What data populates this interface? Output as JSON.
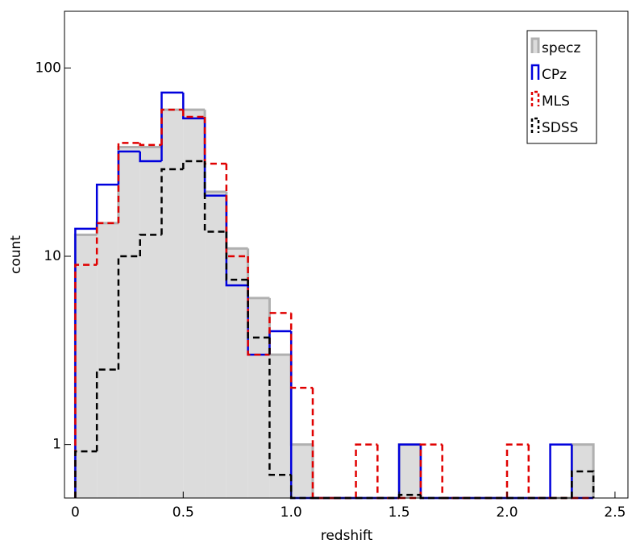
{
  "chart_data": {
    "type": "histogram",
    "xlabel": "redshift",
    "ylabel": "count",
    "bins": [
      0,
      0.1,
      0.2,
      0.3,
      0.4,
      0.5,
      0.6,
      0.7,
      0.8,
      0.9,
      1.0,
      1.1,
      1.2,
      1.3,
      1.4,
      1.5,
      1.6,
      1.7,
      1.8,
      1.9,
      2.0,
      2.1,
      2.2,
      2.3,
      2.4
    ],
    "series": [
      {
        "name": "specz",
        "color": "#b0b0b0",
        "fill": "#dcdcdc",
        "style": "filled",
        "values": [
          13,
          15,
          38,
          38,
          60,
          60,
          22,
          11,
          6,
          3,
          1,
          0,
          0,
          0,
          0,
          1,
          0,
          0,
          0,
          0,
          0,
          0,
          0,
          1
        ]
      },
      {
        "name": "CPz",
        "color": "#0000dd",
        "style": "solid",
        "values": [
          14,
          24,
          36,
          32,
          74,
          54,
          21,
          7,
          3,
          4,
          0,
          0,
          0,
          0,
          0,
          1,
          0,
          0,
          0,
          0,
          0,
          0,
          1,
          0
        ]
      },
      {
        "name": "MLS",
        "color": "#e00000",
        "style": "dashed",
        "values": [
          9,
          15,
          40,
          39,
          60,
          55,
          31,
          10,
          3,
          5,
          2,
          0,
          0,
          1,
          0,
          0,
          1,
          0,
          0,
          0,
          1,
          0,
          0,
          0
        ]
      },
      {
        "name": "SDSS",
        "color": "#000000",
        "style": "dashed",
        "values": [
          0.92,
          2.5,
          10,
          13,
          29,
          32,
          13.5,
          7.5,
          3.7,
          0.69,
          0,
          0,
          0,
          0,
          0,
          0.54,
          0,
          0,
          0,
          0,
          0,
          0,
          0,
          0.72
        ]
      }
    ],
    "xlim": [
      -0.05,
      2.56
    ],
    "ylim": [
      0.52,
      200
    ],
    "log_y": true,
    "xticks": [
      0,
      0.5,
      {
        "value": 1,
        "label": "1.0"
      },
      1.5,
      {
        "value": 2,
        "label": "2.0"
      },
      2.5
    ],
    "yticks": [
      1,
      10,
      100
    ],
    "legend": "upper right"
  }
}
